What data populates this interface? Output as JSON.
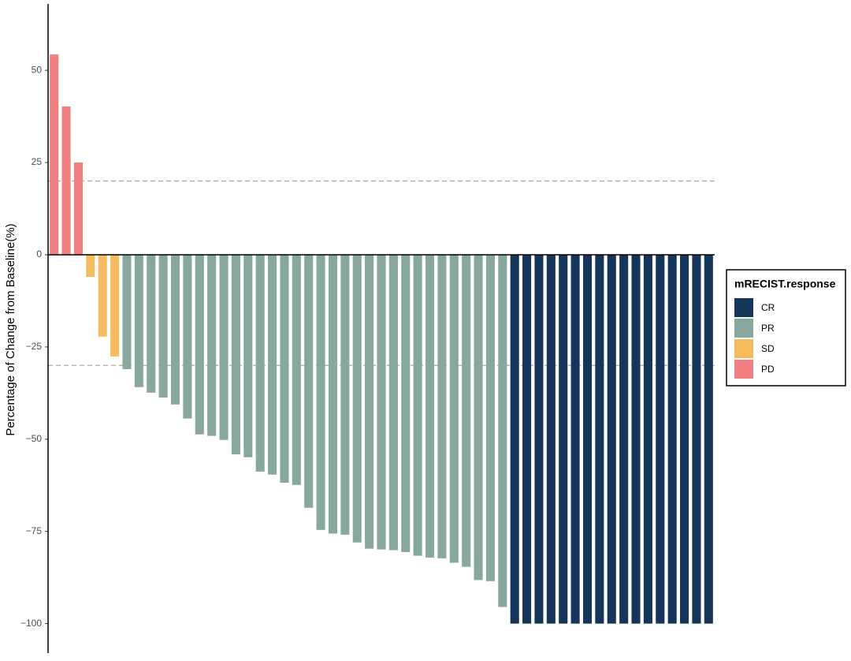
{
  "chart_data": {
    "type": "waterfall",
    "y_label": "Percentage of Change from Baseline(%)",
    "legend_title": "mRECIST.response",
    "legend_position": "right",
    "ylim": [
      -108,
      68
    ],
    "yticks": [
      {
        "value": 50,
        "label": "50"
      },
      {
        "value": 25,
        "label": "25"
      },
      {
        "value": 0,
        "label": "0"
      },
      {
        "value": -25,
        "label": "−25"
      },
      {
        "value": -50,
        "label": "−50"
      },
      {
        "value": -75,
        "label": "−75"
      },
      {
        "value": -100,
        "label": "−100"
      }
    ],
    "reference_lines": [
      20,
      -30
    ],
    "series": [
      {
        "name": "CR",
        "color": "#15365a",
        "values": [
          -100,
          -100,
          -100,
          -100,
          -100,
          -100,
          -100,
          -100,
          -100,
          -100,
          -100,
          -100,
          -100,
          -100,
          -100,
          -100,
          -100
        ]
      },
      {
        "name": "PR",
        "color": "#88a89f",
        "values": [
          -31.0,
          -35.9,
          -37.4,
          -38.7,
          -40.6,
          -44.4,
          -48.7,
          -49.1,
          -50.2,
          -54.1,
          -54.9,
          -58.8,
          -59.6,
          -61.8,
          -62.4,
          -68.6,
          -74.6,
          -75.6,
          -75.9,
          -78.0,
          -79.7,
          -79.9,
          -80.1,
          -80.6,
          -81.6,
          -82.1,
          -82.3,
          -83.5,
          -84.6,
          -88.2,
          -88.5,
          -95.5
        ]
      },
      {
        "name": "SD",
        "color": "#f5bc5f",
        "values": [
          -6.0,
          -22.2,
          -27.6
        ]
      },
      {
        "name": "PD",
        "color": "#f08080",
        "values": [
          54.3,
          40.2,
          25.0
        ]
      }
    ]
  }
}
